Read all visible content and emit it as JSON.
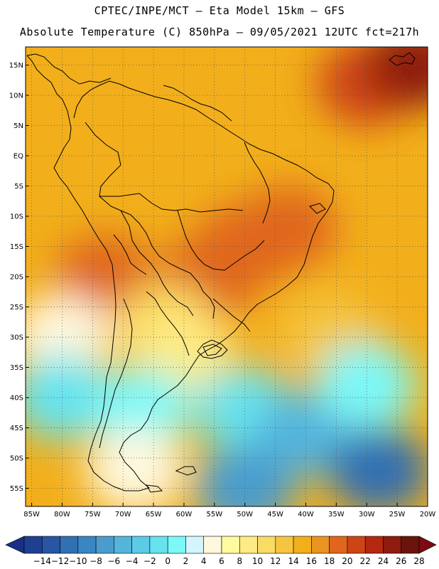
{
  "header": {
    "line1": "CPTEC/INPE/MCT –  Eta Model 15km – GFS",
    "line2": "Absolute Temperature (C) 850hPa – 09/05/2021 12UTC fct=217h"
  },
  "map": {
    "lat_labels": [
      "15N",
      "10N",
      "5N",
      "EQ",
      "5S",
      "10S",
      "15S",
      "20S",
      "25S",
      "30S",
      "35S",
      "40S",
      "45S",
      "50S",
      "55S"
    ],
    "lon_labels": [
      "85W",
      "80W",
      "75W",
      "70W",
      "65W",
      "60W",
      "55W",
      "50W",
      "45W",
      "40W",
      "35W",
      "30W",
      "25W",
      "20W"
    ],
    "lat_range": [
      18,
      -58
    ],
    "lon_range": [
      -86,
      -20
    ],
    "grid": "dotted",
    "field_blobs": [
      {
        "lon": -30,
        "lat": 12,
        "value": 23
      },
      {
        "lon": -22,
        "lat": 15,
        "value": 26
      },
      {
        "lon": -50,
        "lat": -15,
        "value": 21
      },
      {
        "lon": -43,
        "lat": -12,
        "value": 21
      },
      {
        "lon": -56,
        "lat": -20,
        "value": 21
      },
      {
        "lon": -73,
        "lat": -20,
        "value": 20
      },
      {
        "lon": -63,
        "lat": -28,
        "value": 12
      },
      {
        "lon": -60,
        "lat": -33,
        "value": 10
      },
      {
        "lon": -80,
        "lat": -30,
        "value": 6
      },
      {
        "lon": -80,
        "lat": -40,
        "value": 1
      },
      {
        "lon": -67,
        "lat": -42,
        "value": 3
      },
      {
        "lon": -68,
        "lat": -52,
        "value": 7
      },
      {
        "lon": -50,
        "lat": -42,
        "value": 0
      },
      {
        "lon": -40,
        "lat": -46,
        "value": -4
      },
      {
        "lon": -28,
        "lat": -52,
        "value": -10
      },
      {
        "lon": -50,
        "lat": -55,
        "value": -5
      },
      {
        "lon": -36,
        "lat": -30,
        "value": 14
      },
      {
        "lon": -30,
        "lat": -38,
        "value": 2
      }
    ]
  },
  "colorbar": {
    "labels": [
      "-14",
      "-12",
      "-10",
      "-8",
      "-6",
      "-4",
      "-2",
      "0",
      "2",
      "4",
      "6",
      "8",
      "10",
      "12",
      "14",
      "16",
      "18",
      "20",
      "22",
      "24",
      "26",
      "28"
    ],
    "colors": [
      "#1f3f91",
      "#2856a3",
      "#3070b3",
      "#3a86c2",
      "#4a9cce",
      "#55b4dc",
      "#5ccbe6",
      "#66e3ee",
      "#7cf8f8",
      "#d4f5fc",
      "#fff8de",
      "#fffaa0",
      "#feeb83",
      "#fadb64",
      "#f5c53f",
      "#f2af1b",
      "#eb9320",
      "#e0661c",
      "#cf4416",
      "#b4280f",
      "#8e1b10",
      "#6a140c"
    ],
    "left_arrow_color": "#1a2f86",
    "right_arrow_color": "#7a0c12"
  },
  "colors": {
    "coast": "#000000",
    "frame": "#000000"
  }
}
